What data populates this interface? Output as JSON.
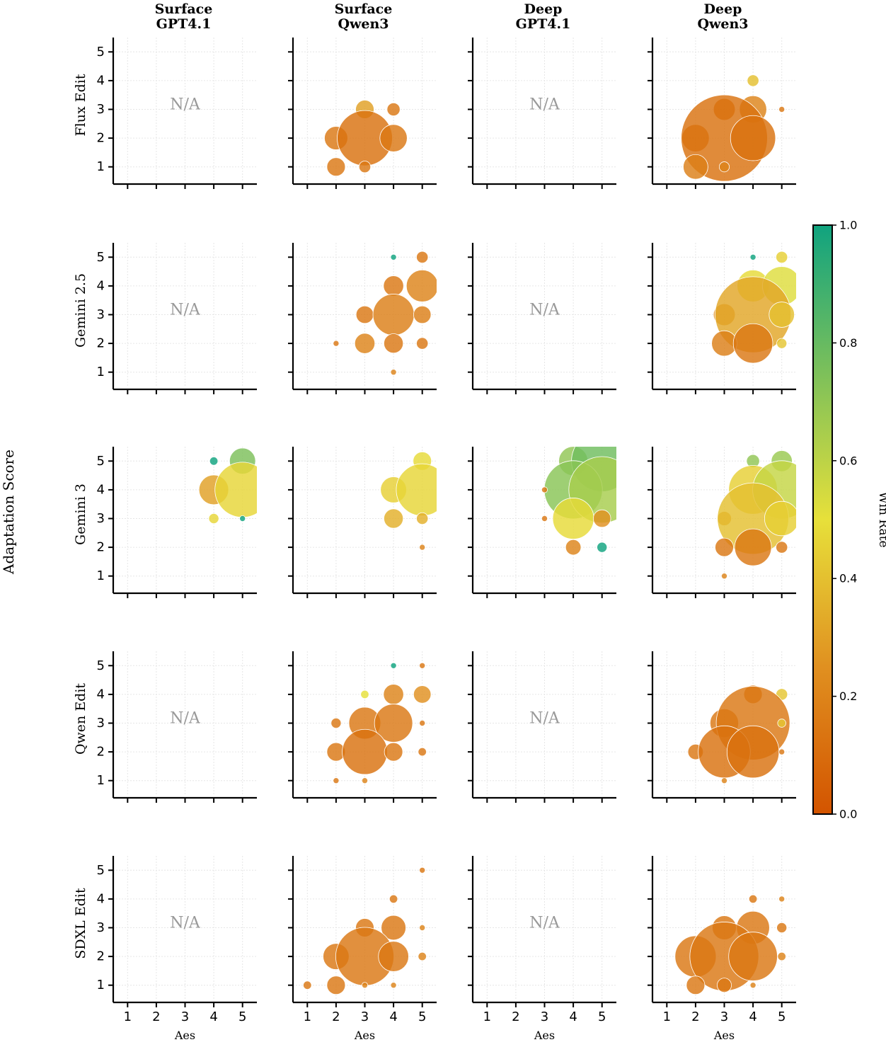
{
  "chart_data": {
    "type": "scatter",
    "subtype": "bubble-grid",
    "columns": [
      "Surface\nGPT4.1",
      "Surface\nQwen3",
      "Deep\nGPT4.1",
      "Deep\nQwen3"
    ],
    "rows": [
      "Flux Edit",
      "Gemini 2.5",
      "Gemini 3",
      "Qwen Edit",
      "SDXL Edit"
    ],
    "ylabel": "Adaptation Score",
    "xlabel": "Aes",
    "xticks": [
      1,
      2,
      3,
      4,
      5
    ],
    "yticks": [
      1,
      2,
      3,
      4,
      5
    ],
    "xlim": [
      0.5,
      5.5
    ],
    "ylim": [
      0.5,
      5.5
    ],
    "na_label": "N/A",
    "grid": true,
    "colorbar": {
      "label": "Win Rate",
      "ticks": [
        "0.0",
        "0.2",
        "0.4",
        "0.6",
        "0.8",
        "1.0"
      ],
      "range": [
        0,
        1
      ],
      "colors": [
        "#d35400",
        "#e09020",
        "#e7e03a",
        "#7cc05a",
        "#10a37f"
      ]
    },
    "panels": [
      [
        {
          "na": true,
          "points": []
        },
        {
          "na": false,
          "points": [
            {
              "x": 3,
              "y": 3,
              "size": 1,
              "win": 0.3
            },
            {
              "x": 4,
              "y": 3,
              "size": 0.5,
              "win": 0.15
            },
            {
              "x": 2,
              "y": 2,
              "size": 1.6,
              "win": 0.15
            },
            {
              "x": 3,
              "y": 2,
              "size": 9,
              "win": 0.12
            },
            {
              "x": 4,
              "y": 2,
              "size": 2.2,
              "win": 0.15
            },
            {
              "x": 2,
              "y": 1,
              "size": 1,
              "win": 0.15
            },
            {
              "x": 3,
              "y": 1,
              "size": 0.4,
              "win": 0.15
            }
          ]
        },
        {
          "na": true,
          "points": []
        },
        {
          "na": false,
          "points": [
            {
              "x": 4,
              "y": 4,
              "size": 0.4,
              "win": 0.4
            },
            {
              "x": 3,
              "y": 3,
              "size": 1.4,
              "win": 0.12
            },
            {
              "x": 4,
              "y": 3,
              "size": 2.2,
              "win": 0.2
            },
            {
              "x": 5,
              "y": 3,
              "size": 0.1,
              "win": 0.15
            },
            {
              "x": 2,
              "y": 2,
              "size": 2.2,
              "win": 0.15
            },
            {
              "x": 3,
              "y": 2,
              "size": 22,
              "win": 0.12
            },
            {
              "x": 4,
              "y": 2,
              "size": 6,
              "win": 0.12
            },
            {
              "x": 2,
              "y": 1,
              "size": 1.8,
              "win": 0.18
            },
            {
              "x": 3,
              "y": 1,
              "size": 0.3,
              "win": 0.2
            }
          ]
        }
      ],
      [
        {
          "na": true,
          "points": []
        },
        {
          "na": false,
          "points": [
            {
              "x": 4,
              "y": 5,
              "size": 0.1,
              "win": 1.0
            },
            {
              "x": 5,
              "y": 5,
              "size": 0.4,
              "win": 0.15
            },
            {
              "x": 4,
              "y": 4,
              "size": 1.2,
              "win": 0.15
            },
            {
              "x": 5,
              "y": 4,
              "size": 3,
              "win": 0.2
            },
            {
              "x": 3,
              "y": 3,
              "size": 0.9,
              "win": 0.15
            },
            {
              "x": 4,
              "y": 3,
              "size": 5,
              "win": 0.18
            },
            {
              "x": 5,
              "y": 3,
              "size": 0.9,
              "win": 0.18
            },
            {
              "x": 2,
              "y": 2,
              "size": 0.1,
              "win": 0.15
            },
            {
              "x": 3,
              "y": 2,
              "size": 1.2,
              "win": 0.2
            },
            {
              "x": 4,
              "y": 2,
              "size": 1.1,
              "win": 0.15
            },
            {
              "x": 5,
              "y": 2,
              "size": 0.4,
              "win": 0.15
            },
            {
              "x": 4,
              "y": 1,
              "size": 0.1,
              "win": 0.2
            }
          ]
        },
        {
          "na": true,
          "points": []
        },
        {
          "na": false,
          "points": [
            {
              "x": 4,
              "y": 5,
              "size": 0.1,
              "win": 1.0
            },
            {
              "x": 5,
              "y": 5,
              "size": 0.4,
              "win": 0.45
            },
            {
              "x": 4,
              "y": 4,
              "size": 3,
              "win": 0.48
            },
            {
              "x": 5,
              "y": 4,
              "size": 4.4,
              "win": 0.52
            },
            {
              "x": 3,
              "y": 3,
              "size": 1.4,
              "win": 0.25
            },
            {
              "x": 4,
              "y": 3,
              "size": 17,
              "win": 0.32
            },
            {
              "x": 5,
              "y": 3,
              "size": 1.9,
              "win": 0.4
            },
            {
              "x": 3,
              "y": 2,
              "size": 1.9,
              "win": 0.18
            },
            {
              "x": 4,
              "y": 2,
              "size": 4.6,
              "win": 0.15
            },
            {
              "x": 5,
              "y": 2,
              "size": 0.3,
              "win": 0.42
            }
          ]
        }
      ],
      [
        {
          "na": false,
          "points": [
            {
              "x": 4,
              "y": 5,
              "size": 0.2,
              "win": 1.0
            },
            {
              "x": 5,
              "y": 5,
              "size": 2,
              "win": 0.75
            },
            {
              "x": 4,
              "y": 4,
              "size": 2.6,
              "win": 0.3
            },
            {
              "x": 5,
              "y": 4,
              "size": 9,
              "win": 0.47
            },
            {
              "x": 4,
              "y": 3,
              "size": 0.3,
              "win": 0.47
            },
            {
              "x": 5,
              "y": 3,
              "size": 0.1,
              "win": 1.0
            }
          ]
        },
        {
          "na": false,
          "points": [
            {
              "x": 5,
              "y": 5,
              "size": 1,
              "win": 0.48
            },
            {
              "x": 4,
              "y": 4,
              "size": 2,
              "win": 0.45
            },
            {
              "x": 5,
              "y": 4,
              "size": 8,
              "win": 0.47
            },
            {
              "x": 4,
              "y": 3,
              "size": 1.1,
              "win": 0.35
            },
            {
              "x": 5,
              "y": 3,
              "size": 0.4,
              "win": 0.35
            },
            {
              "x": 5,
              "y": 2,
              "size": 0.1,
              "win": 0.2
            }
          ]
        },
        {
          "na": false,
          "points": [
            {
              "x": 4,
              "y": 5,
              "size": 2.5,
              "win": 0.7
            },
            {
              "x": 5,
              "y": 5,
              "size": 11,
              "win": 0.78
            },
            {
              "x": 4,
              "y": 4,
              "size": 10,
              "win": 0.72
            },
            {
              "x": 5,
              "y": 4,
              "size": 13,
              "win": 0.65
            },
            {
              "x": 3,
              "y": 4,
              "size": 0.1,
              "win": 0.15
            },
            {
              "x": 4,
              "y": 3,
              "size": 5,
              "win": 0.48
            },
            {
              "x": 5,
              "y": 3,
              "size": 0.9,
              "win": 0.25
            },
            {
              "x": 3,
              "y": 3,
              "size": 0.1,
              "win": 0.15
            },
            {
              "x": 4,
              "y": 2,
              "size": 0.7,
              "win": 0.2
            },
            {
              "x": 5,
              "y": 2,
              "size": 0.3,
              "win": 1.0
            }
          ]
        },
        {
          "na": false,
          "points": [
            {
              "x": 4,
              "y": 5,
              "size": 0.5,
              "win": 0.7
            },
            {
              "x": 5,
              "y": 5,
              "size": 1.3,
              "win": 0.68
            },
            {
              "x": 4,
              "y": 4,
              "size": 7,
              "win": 0.45
            },
            {
              "x": 5,
              "y": 4,
              "size": 10,
              "win": 0.58
            },
            {
              "x": 3,
              "y": 3,
              "size": 0.6,
              "win": 0.25
            },
            {
              "x": 4,
              "y": 3,
              "size": 15,
              "win": 0.4
            },
            {
              "x": 5,
              "y": 3,
              "size": 3.5,
              "win": 0.45
            },
            {
              "x": 3,
              "y": 2,
              "size": 1,
              "win": 0.15
            },
            {
              "x": 4,
              "y": 2,
              "size": 4,
              "win": 0.15
            },
            {
              "x": 5,
              "y": 2,
              "size": 0.4,
              "win": 0.15
            },
            {
              "x": 3,
              "y": 1,
              "size": 0.1,
              "win": 0.2
            }
          ]
        }
      ],
      [
        {
          "na": true,
          "points": []
        },
        {
          "na": false,
          "points": [
            {
              "x": 4,
              "y": 5,
              "size": 0.1,
              "win": 1.0
            },
            {
              "x": 5,
              "y": 5,
              "size": 0.1,
              "win": 0.15
            },
            {
              "x": 3,
              "y": 4,
              "size": 0.2,
              "win": 0.5
            },
            {
              "x": 4,
              "y": 4,
              "size": 1.2,
              "win": 0.2
            },
            {
              "x": 5,
              "y": 4,
              "size": 0.9,
              "win": 0.25
            },
            {
              "x": 2,
              "y": 3,
              "size": 0.3,
              "win": 0.15
            },
            {
              "x": 3,
              "y": 3,
              "size": 3,
              "win": 0.15
            },
            {
              "x": 4,
              "y": 3,
              "size": 4.3,
              "win": 0.15
            },
            {
              "x": 5,
              "y": 3,
              "size": 0.1,
              "win": 0.15
            },
            {
              "x": 2,
              "y": 2,
              "size": 1,
              "win": 0.15
            },
            {
              "x": 3,
              "y": 2,
              "size": 6,
              "win": 0.12
            },
            {
              "x": 4,
              "y": 2,
              "size": 1,
              "win": 0.15
            },
            {
              "x": 5,
              "y": 2,
              "size": 0.2,
              "win": 0.15
            },
            {
              "x": 2,
              "y": 1,
              "size": 0.1,
              "win": 0.15
            },
            {
              "x": 3,
              "y": 1,
              "size": 0.1,
              "win": 0.2
            }
          ]
        },
        {
          "na": true,
          "points": []
        },
        {
          "na": false,
          "points": [
            {
              "x": 4,
              "y": 4,
              "size": 1,
              "win": 0.15
            },
            {
              "x": 5,
              "y": 4,
              "size": 0.4,
              "win": 0.42
            },
            {
              "x": 3,
              "y": 3,
              "size": 2.4,
              "win": 0.15
            },
            {
              "x": 4,
              "y": 3,
              "size": 16,
              "win": 0.15
            },
            {
              "x": 5,
              "y": 3,
              "size": 0.2,
              "win": 0.42
            },
            {
              "x": 2,
              "y": 2,
              "size": 0.7,
              "win": 0.15
            },
            {
              "x": 3,
              "y": 2,
              "size": 8,
              "win": 0.12
            },
            {
              "x": 4,
              "y": 2,
              "size": 8,
              "win": 0.12
            },
            {
              "x": 5,
              "y": 2,
              "size": 0.1,
              "win": 0.15
            },
            {
              "x": 3,
              "y": 1,
              "size": 0.1,
              "win": 0.2
            }
          ]
        }
      ],
      [
        {
          "na": true,
          "points": []
        },
        {
          "na": false,
          "points": [
            {
              "x": 5,
              "y": 5,
              "size": 0.1,
              "win": 0.15
            },
            {
              "x": 4,
              "y": 4,
              "size": 0.2,
              "win": 0.15
            },
            {
              "x": 3,
              "y": 3,
              "size": 1,
              "win": 0.15
            },
            {
              "x": 4,
              "y": 3,
              "size": 1.8,
              "win": 0.15
            },
            {
              "x": 5,
              "y": 3,
              "size": 0.1,
              "win": 0.2
            },
            {
              "x": 2,
              "y": 2,
              "size": 2,
              "win": 0.15
            },
            {
              "x": 3,
              "y": 2,
              "size": 10,
              "win": 0.15
            },
            {
              "x": 4,
              "y": 2,
              "size": 2.7,
              "win": 0.15
            },
            {
              "x": 5,
              "y": 2,
              "size": 0.2,
              "win": 0.2
            },
            {
              "x": 1,
              "y": 1,
              "size": 0.2,
              "win": 0.15
            },
            {
              "x": 2,
              "y": 1,
              "size": 1,
              "win": 0.15
            },
            {
              "x": 3,
              "y": 1,
              "size": 0.1,
              "win": 0.2
            },
            {
              "x": 4,
              "y": 1,
              "size": 0.1,
              "win": 0.2
            }
          ]
        },
        {
          "na": true,
          "points": []
        },
        {
          "na": false,
          "points": [
            {
              "x": 4,
              "y": 4,
              "size": 0.2,
              "win": 0.15
            },
            {
              "x": 5,
              "y": 4,
              "size": 0.1,
              "win": 0.2
            },
            {
              "x": 3,
              "y": 3,
              "size": 1.7,
              "win": 0.15
            },
            {
              "x": 4,
              "y": 3,
              "size": 3.2,
              "win": 0.15
            },
            {
              "x": 5,
              "y": 3,
              "size": 0.3,
              "win": 0.15
            },
            {
              "x": 2,
              "y": 2,
              "size": 5,
              "win": 0.15
            },
            {
              "x": 3,
              "y": 2,
              "size": 14,
              "win": 0.15
            },
            {
              "x": 4,
              "y": 2,
              "size": 7,
              "win": 0.15
            },
            {
              "x": 5,
              "y": 2,
              "size": 0.2,
              "win": 0.2
            },
            {
              "x": 2,
              "y": 1,
              "size": 1,
              "win": 0.15
            },
            {
              "x": 3,
              "y": 1,
              "size": 0.6,
              "win": 0.15
            },
            {
              "x": 4,
              "y": 1,
              "size": 0.1,
              "win": 0.2
            }
          ]
        }
      ]
    ]
  }
}
